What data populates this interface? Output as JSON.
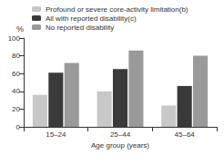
{
  "chart_data": {
    "type": "bar",
    "categories": [
      "15–24",
      "25–44",
      "45–64"
    ],
    "series": [
      {
        "name": "Profound or severe core-activity limitation(b)",
        "color": "#c8c8c8",
        "values": [
          36,
          40,
          24
        ]
      },
      {
        "name": "All with reported disability(c)",
        "color": "#3a3a3a",
        "values": [
          61,
          65,
          46
        ]
      },
      {
        "name": "No reported disability",
        "color": "#9a9a9a",
        "values": [
          72,
          86,
          80
        ]
      }
    ],
    "xlabel": "Age group (years)",
    "ylabel": "%",
    "ylim": [
      0,
      100
    ],
    "yticks": [
      0,
      20,
      40,
      60,
      80,
      100
    ],
    "grid": false,
    "legend": "top-left"
  }
}
